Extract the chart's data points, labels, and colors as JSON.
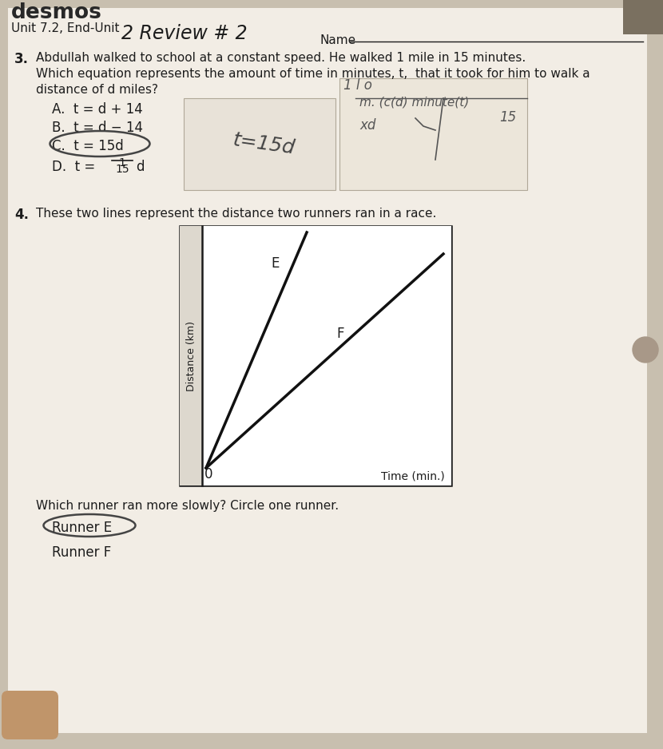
{
  "bg_color": "#c8bfaf",
  "paper_color": "#f2ede5",
  "header_text": "desmos",
  "subheader_left": "Unit 7.2, End-Unit ",
  "subheader_right": "2 Review # 2",
  "name_label": "Name",
  "q3_num": "3.",
  "q3_line1": "Abdullah walked to school at a constant speed. He walked 1 mile in 15 minutes.",
  "q3_line2": "Which equation represents the amount of time in minutes, t,  that it took for him to walk a",
  "q3_line3": "distance of d miles?",
  "opt_A": "A.  t = d + 14",
  "opt_B": "B.  t = d − 14",
  "opt_C": "C.  t = 15d",
  "opt_D_pre": "D.  t =",
  "opt_D_num": "1",
  "opt_D_den": "15",
  "opt_D_post": "d",
  "hw_middle": "t=15d",
  "hw_right1": "1 l o",
  "hw_right2": "m. (c(d) minute(t)",
  "hw_right3": "15",
  "hw_right4": "xd",
  "q4_num": "4.",
  "q4_text": "These two lines represent the distance two runners ran in a race.",
  "graph_ylabel": "Distance (km)",
  "graph_xlabel": "Time (min.)",
  "graph_E": "E",
  "graph_F": "F",
  "graph_0": "0",
  "q4_follow": "Which runner ran more slowly? Circle one runner.",
  "opt_RunnerE": "Runner E",
  "opt_RunnerF": "Runner F",
  "font_color": "#1c1c1c",
  "handwrite_color": "#3a3a3a",
  "line_color": "#111111"
}
